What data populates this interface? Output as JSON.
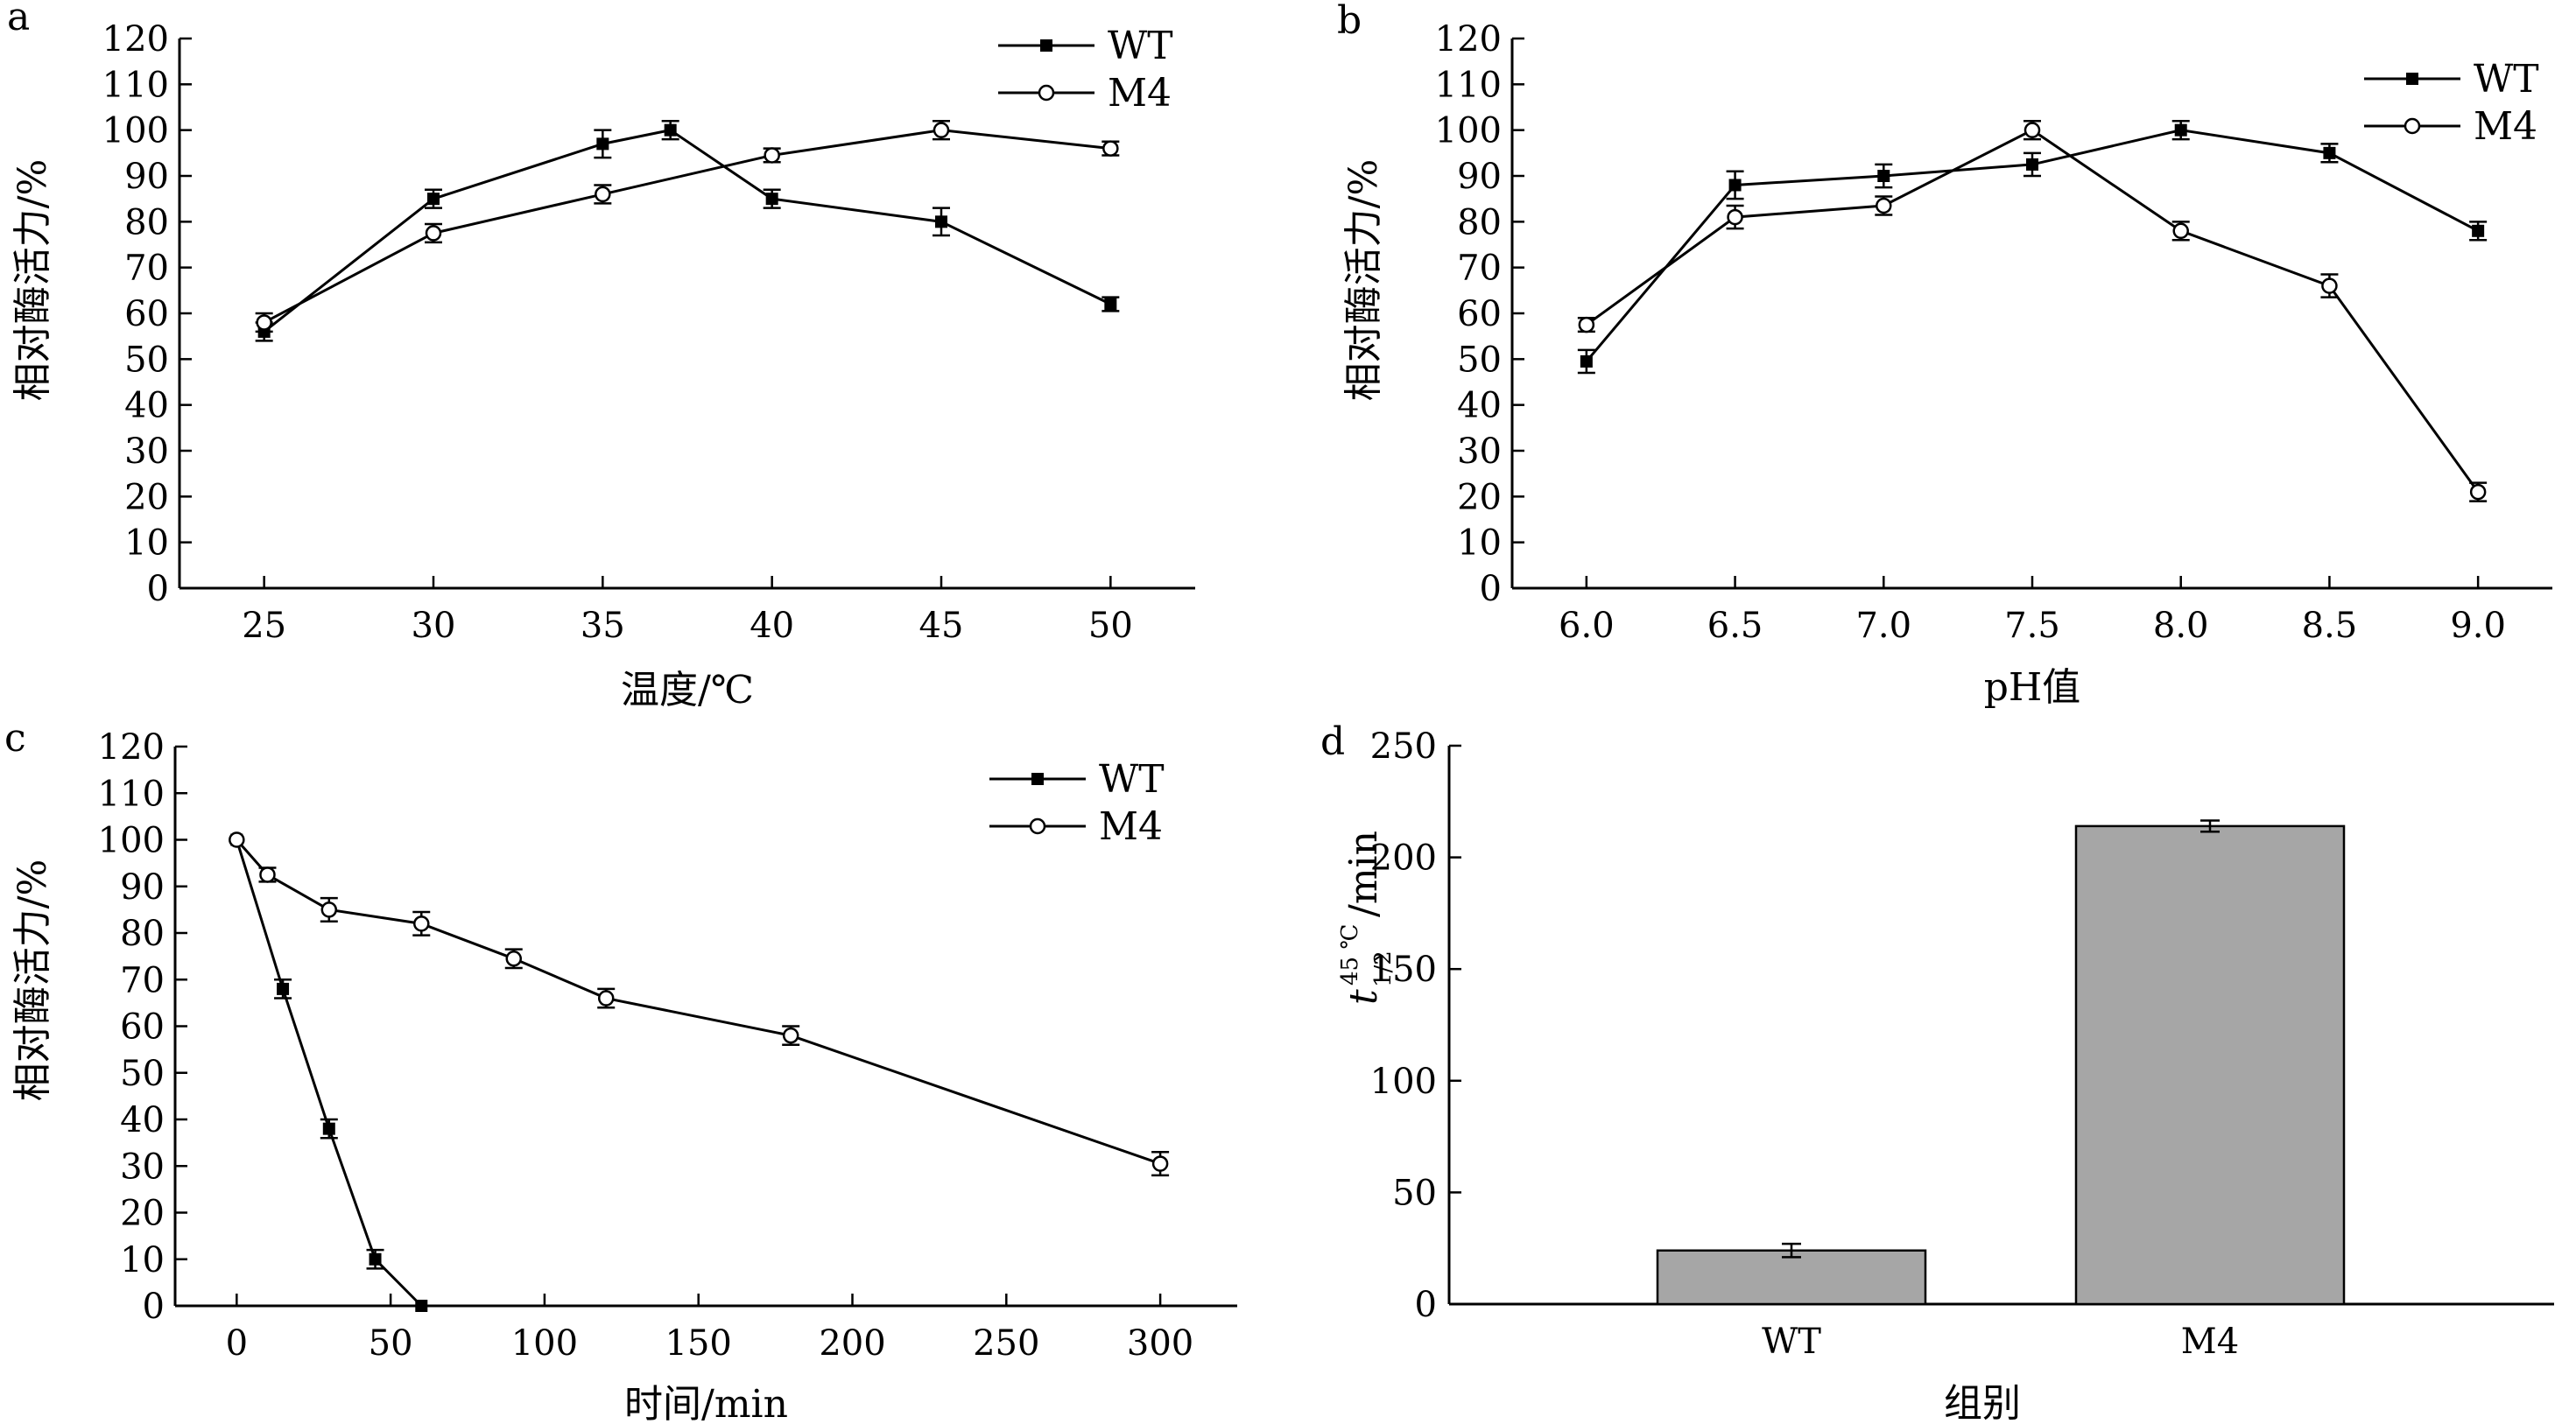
{
  "colors": {
    "line": "#000000",
    "bar_fill": "#a6a6a6",
    "marker_open_fill": "#ffffff"
  },
  "chart_data": [
    {
      "id": "a",
      "type": "line",
      "panel_label": "a",
      "xlabel": "温度/℃",
      "ylabel": "相对酶活力/%",
      "xlim": [
        22.5,
        52.5
      ],
      "ylim": [
        0,
        120
      ],
      "xticks": [
        25,
        30,
        35,
        40,
        45,
        50
      ],
      "yticks": [
        0,
        10,
        20,
        30,
        40,
        50,
        60,
        70,
        80,
        90,
        100,
        110,
        120
      ],
      "legend_position": "top-right",
      "series": [
        {
          "name": "WT",
          "marker": "filled-square",
          "x": [
            25,
            30,
            35,
            37,
            40,
            45,
            50
          ],
          "y": [
            56,
            85,
            97,
            100,
            85,
            80,
            62
          ],
          "err": [
            2,
            2,
            3,
            2,
            2,
            3,
            1.5
          ]
        },
        {
          "name": "M4",
          "marker": "open-circle",
          "x": [
            25,
            30,
            35,
            40,
            45,
            50
          ],
          "y": [
            58,
            77.5,
            86,
            94.5,
            100,
            96
          ],
          "err": [
            2,
            2,
            2,
            1.5,
            2,
            1.5
          ]
        }
      ]
    },
    {
      "id": "b",
      "type": "line",
      "panel_label": "b",
      "xlabel": "pH值",
      "ylabel": "相对酶活力/%",
      "xlim": [
        5.75,
        9.25
      ],
      "ylim": [
        0,
        120
      ],
      "xticks": [
        6.0,
        6.5,
        7.0,
        7.5,
        8.0,
        8.5,
        9.0
      ],
      "xtick_labels": [
        "6.0",
        "6.5",
        "7.0",
        "7.5",
        "8.0",
        "8.5",
        "9.0"
      ],
      "yticks": [
        0,
        10,
        20,
        30,
        40,
        50,
        60,
        70,
        80,
        90,
        100,
        110,
        120
      ],
      "legend_position": "top-right",
      "series": [
        {
          "name": "WT",
          "marker": "filled-square",
          "x": [
            6.0,
            6.5,
            7.0,
            7.5,
            8.0,
            8.5,
            9.0
          ],
          "y": [
            49.5,
            88,
            90,
            92.5,
            100,
            95,
            78
          ],
          "err": [
            2.5,
            3,
            2.5,
            2.5,
            2,
            2,
            2
          ]
        },
        {
          "name": "M4",
          "marker": "open-circle",
          "x": [
            6.0,
            6.5,
            7.0,
            7.5,
            8.0,
            8.5,
            9.0
          ],
          "y": [
            57.5,
            81,
            83.5,
            100,
            78,
            66,
            21
          ],
          "err": [
            1.5,
            2.5,
            2,
            2,
            2,
            2.5,
            2
          ]
        }
      ]
    },
    {
      "id": "c",
      "type": "line",
      "panel_label": "c",
      "xlabel": "时间/min",
      "ylabel": "相对酶活力/%",
      "xlim": [
        -20,
        325
      ],
      "ylim": [
        0,
        120
      ],
      "xticks": [
        0,
        50,
        100,
        150,
        200,
        250,
        300
      ],
      "yticks": [
        0,
        10,
        20,
        30,
        40,
        50,
        60,
        70,
        80,
        90,
        100,
        110,
        120
      ],
      "legend_position": "top-right",
      "series": [
        {
          "name": "WT",
          "marker": "filled-square",
          "x": [
            0,
            15,
            30,
            45,
            60
          ],
          "y": [
            100,
            68,
            38,
            10,
            0
          ],
          "err": [
            0,
            2,
            2,
            2,
            0
          ]
        },
        {
          "name": "M4",
          "marker": "open-circle",
          "x": [
            0,
            10,
            30,
            60,
            90,
            120,
            180,
            300
          ],
          "y": [
            100,
            92.5,
            85,
            82,
            74.5,
            66,
            58,
            30.5
          ],
          "err": [
            0,
            1.5,
            2.5,
            2.5,
            2,
            2,
            2,
            2.5
          ]
        }
      ]
    },
    {
      "id": "d",
      "type": "bar",
      "panel_label": "d",
      "xlabel": "组别",
      "ylabel": "t1/2 45℃/min",
      "ylabel_parts": {
        "base": "t",
        "sup": "45 ℃",
        "sub": "1/2",
        "tail": "/min"
      },
      "ylim": [
        0,
        250
      ],
      "yticks": [
        0,
        50,
        100,
        150,
        200,
        250
      ],
      "categories": [
        "WT",
        "M4"
      ],
      "values": [
        24,
        214
      ],
      "err": [
        3,
        2.5
      ]
    }
  ]
}
